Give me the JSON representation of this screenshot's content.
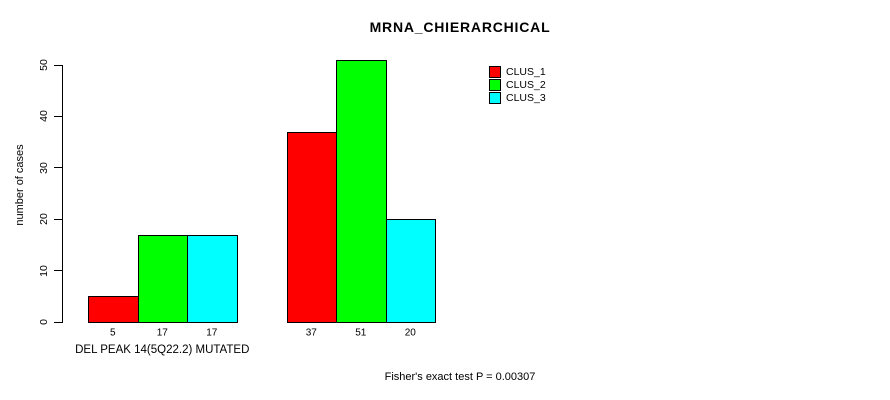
{
  "window": {
    "background": "#ffffff",
    "text_color": "#000000"
  },
  "chart_data": {
    "type": "bar",
    "title": "MRNA_CHIERARCHICAL",
    "ylabel": "number of cases",
    "xlabel": "",
    "ylim": [
      0,
      50
    ],
    "yticks": [
      0,
      10,
      20,
      30,
      40,
      50
    ],
    "categories": [
      "DEL PEAK 14(5Q22.2) MUTATED",
      ""
    ],
    "series": [
      {
        "name": "CLUS_1",
        "color": "#ff0000",
        "values": [
          5,
          37
        ]
      },
      {
        "name": "CLUS_2",
        "color": "#00ff00",
        "values": [
          17,
          51
        ]
      },
      {
        "name": "CLUS_3",
        "color": "#00ffff",
        "values": [
          17,
          20
        ]
      }
    ],
    "bar_value_labels": [
      [
        5,
        17,
        17
      ],
      [
        37,
        51,
        20
      ]
    ],
    "annotation": "Fisher's exact test P = 0.00307",
    "legend_position": "top-right",
    "grid": false,
    "axis_color": "#000000",
    "bar_border_color": "#000000"
  }
}
